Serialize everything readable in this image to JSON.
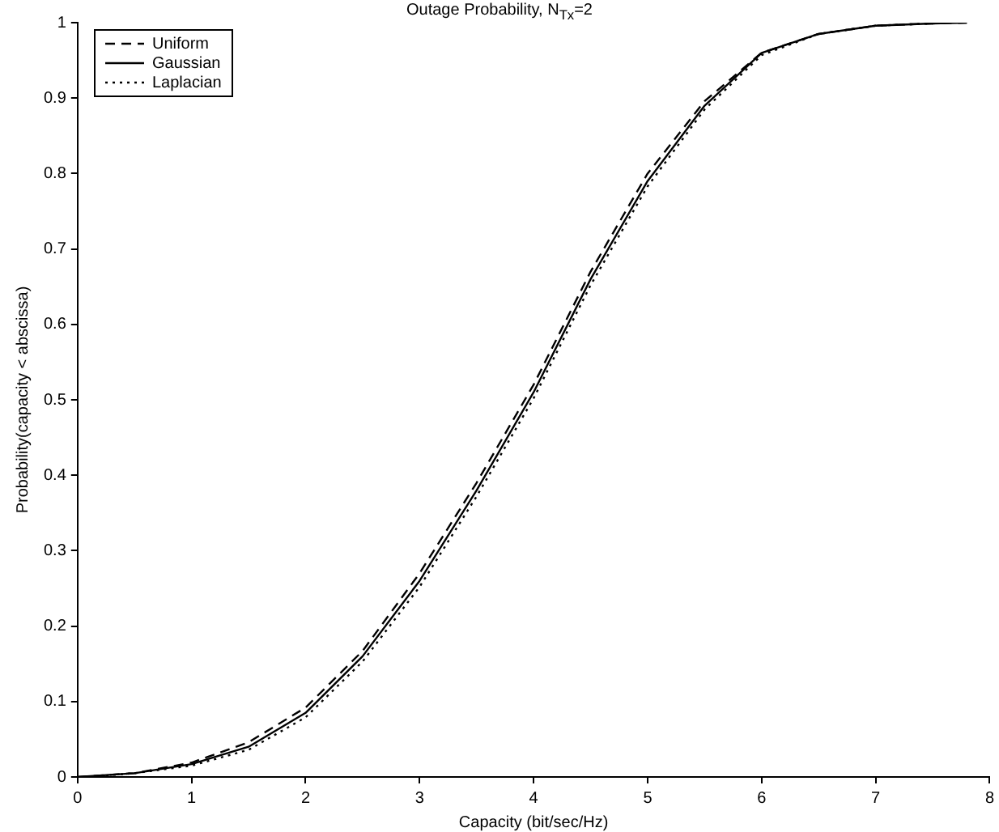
{
  "chart_data": {
    "type": "line",
    "title": "Outage Probability, N$_{Tx}$=2",
    "xlabel": "Capacity (bit/sec/Hz)",
    "ylabel": "Probability(capacity < abscissa)",
    "x": [
      0,
      0.5,
      1,
      1.5,
      2,
      2.5,
      3,
      3.5,
      4,
      4.5,
      5,
      5.5,
      6,
      6.5,
      7,
      7.5,
      7.8
    ],
    "series": [
      {
        "name": "Uniform",
        "color": "#000000",
        "line_style": "dashed",
        "values": [
          0,
          0.005,
          0.019,
          0.046,
          0.092,
          0.167,
          0.27,
          0.39,
          0.52,
          0.67,
          0.8,
          0.896,
          0.96,
          0.985,
          0.996,
          0.999,
          1
        ]
      },
      {
        "name": "Gaussian",
        "color": "#000000",
        "line_style": "solid",
        "values": [
          0,
          0.005,
          0.017,
          0.04,
          0.085,
          0.16,
          0.26,
          0.38,
          0.51,
          0.66,
          0.79,
          0.89,
          0.96,
          0.985,
          0.996,
          0.999,
          1
        ]
      },
      {
        "name": "Laplacian",
        "color": "#000000",
        "line_style": "dotted",
        "x": [
          0.25,
          0.5,
          1,
          1.5,
          2,
          2.5,
          3,
          3.5,
          4,
          4.5,
          5,
          5.5,
          6,
          6.5,
          7,
          7.5
        ],
        "values": [
          0.002,
          0.005,
          0.015,
          0.036,
          0.079,
          0.153,
          0.252,
          0.372,
          0.502,
          0.652,
          0.783,
          0.885,
          0.957,
          0.985,
          0.996,
          0.999
        ]
      }
    ],
    "xlim": [
      0,
      8
    ],
    "xticks": [
      0,
      1,
      2,
      3,
      4,
      5,
      6,
      7,
      8
    ],
    "ylim": [
      0,
      1
    ],
    "yticks": [
      0,
      0.1,
      0.2,
      0.3,
      0.4,
      0.5,
      0.6,
      0.7,
      0.8,
      0.9,
      1
    ],
    "grid": false,
    "legend": "top left",
    "marker": "none"
  }
}
